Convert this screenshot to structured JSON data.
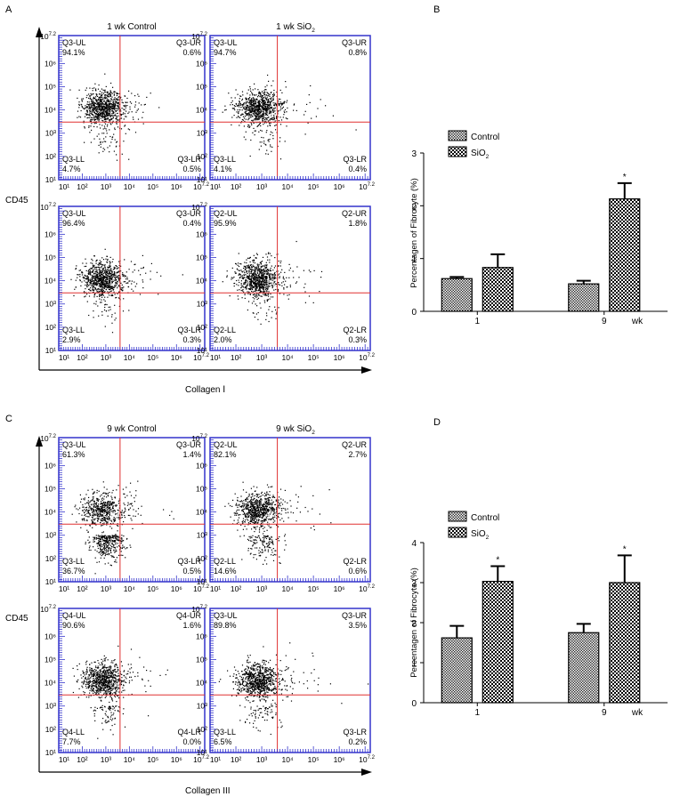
{
  "colors": {
    "frame": "#3333cc",
    "quad_line": "#e03030",
    "dot": "#000000",
    "axis": "#000000"
  },
  "panel_labels": {
    "a": "A",
    "b": "B",
    "c": "C",
    "d": "D"
  },
  "flow_axes": {
    "y_title": "CD45",
    "x_title_top": "Collagen Ⅰ",
    "x_title_bottom": "Collagen III",
    "tick_labels": [
      "10¹",
      "10²",
      "10³",
      "10⁴",
      "10⁵",
      "10⁶",
      "10"
    ],
    "tick_max_base": "10",
    "tick_max_exp": "7.2"
  },
  "chart_data": [
    {
      "type": "scatter",
      "panel": "A",
      "plots": [
        {
          "title": "1 wk Control",
          "gate": "Q3",
          "UL": [
            "Q3-UL",
            "94.1%"
          ],
          "UR": [
            "Q3-UR",
            "0.6%"
          ],
          "LL": [
            "Q3-LL",
            "4.7%"
          ],
          "LR": [
            "Q3-LR",
            "0.5%"
          ]
        },
        {
          "title_main": "1 wk SiO",
          "title_sub": "2",
          "gate": "Q3",
          "UL": [
            "Q3-UL",
            "94.7%"
          ],
          "UR": [
            "Q3-UR",
            "0.8%"
          ],
          "LL": [
            "Q3-LL",
            "4.1%"
          ],
          "LR": [
            "Q3-LR",
            "0.4%"
          ]
        },
        {
          "title": "",
          "gate": "Q3",
          "UL": [
            "Q3-UL",
            "96.4%"
          ],
          "UR": [
            "Q3-UR",
            "0.4%"
          ],
          "LL": [
            "Q3-LL",
            "2.9%"
          ],
          "LR": [
            "Q3-LR",
            "0.3%"
          ]
        },
        {
          "title": "",
          "gate": "Q2",
          "UL": [
            "Q2-UL",
            "95.9%"
          ],
          "UR": [
            "Q2-UR",
            "1.8%"
          ],
          "LL": [
            "Q2-LL",
            "2.0%"
          ],
          "LR": [
            "Q2-LR",
            "0.3%"
          ]
        }
      ]
    },
    {
      "type": "bar",
      "panel": "B",
      "ylabel": "Percentagen of Fibrocyte (%)",
      "ylim": [
        0,
        3
      ],
      "yticks": [
        "0",
        "1",
        "2",
        "3"
      ],
      "categories": [
        "1",
        "9"
      ],
      "x_unit": "wk",
      "series": [
        {
          "name": "Control",
          "values": [
            0.62,
            0.52
          ],
          "errors": [
            0.03,
            0.06
          ]
        },
        {
          "name_main": "SiO",
          "name_sub": "2",
          "values": [
            0.83,
            2.13
          ],
          "errors": [
            0.25,
            0.3
          ]
        }
      ],
      "significance": [
        "",
        "*"
      ]
    },
    {
      "type": "scatter",
      "panel": "C",
      "plots": [
        {
          "title": "9 wk Control",
          "gate": "Q3",
          "UL": [
            "Q3-UL",
            "61.3%"
          ],
          "UR": [
            "Q3-UR",
            "1.4%"
          ],
          "LL": [
            "Q3-LL",
            "36.7%"
          ],
          "LR": [
            "Q3-LR",
            "0.5%"
          ]
        },
        {
          "title_main": "9 wk SiO",
          "title_sub": "2",
          "gate": "Q2",
          "UL": [
            "Q2-UL",
            "82.1%"
          ],
          "UR": [
            "Q2-UR",
            "2.7%"
          ],
          "LL": [
            "Q2-LL",
            "14.6%"
          ],
          "LR": [
            "Q2-LR",
            "0.6%"
          ]
        },
        {
          "title": "",
          "gate": "Q4",
          "UL": [
            "Q4-UL",
            "90.6%"
          ],
          "UR": [
            "Q4-UR",
            "1.6%"
          ],
          "LL": [
            "Q4-LL",
            "7.7%"
          ],
          "LR": [
            "Q4-LR",
            "0.0%"
          ]
        },
        {
          "title": "",
          "gate": "Q3",
          "UL": [
            "Q3-UL",
            "89.8%"
          ],
          "UR": [
            "Q3-UR",
            "3.5%"
          ],
          "LL": [
            "Q3-LL",
            "6.5%"
          ],
          "LR": [
            "Q3-LR",
            "0.2%"
          ]
        }
      ]
    },
    {
      "type": "bar",
      "panel": "D",
      "ylabel": "Percentagen of Fibrocyte (%)",
      "ylim": [
        0,
        4
      ],
      "yticks": [
        "0",
        "1",
        "2",
        "3",
        "4"
      ],
      "categories": [
        "1",
        "9"
      ],
      "x_unit": "wk",
      "series": [
        {
          "name": "Control",
          "values": [
            1.62,
            1.75
          ],
          "errors": [
            0.3,
            0.22
          ]
        },
        {
          "name_main": "SiO",
          "name_sub": "2",
          "values": [
            3.03,
            3.0
          ],
          "errors": [
            0.38,
            0.68
          ]
        }
      ],
      "significance": [
        "*",
        "*"
      ]
    }
  ]
}
